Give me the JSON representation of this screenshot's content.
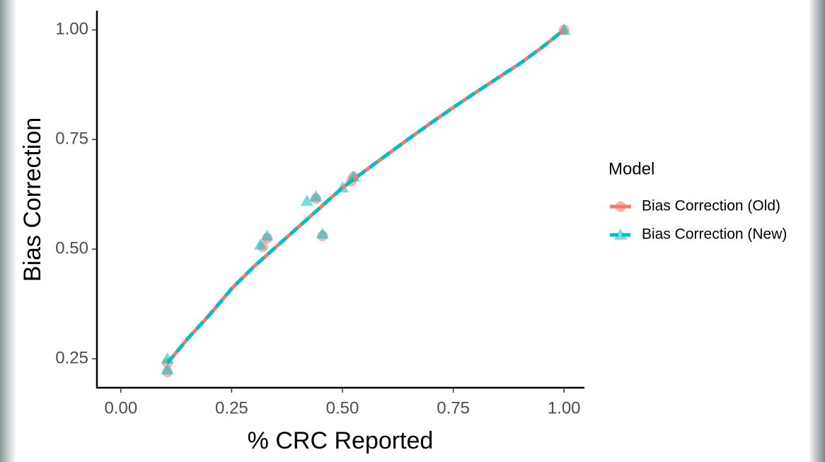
{
  "chart_data": {
    "type": "line-scatter",
    "x_label": "% CRC Reported",
    "y_label": "Bias Correction",
    "legend_title": "Model",
    "xlim": [
      -0.054,
      1.046
    ],
    "ylim": [
      0.184,
      1.044
    ],
    "xticks": [
      {
        "value": 0,
        "label": "0.00"
      },
      {
        "value": 0.25,
        "label": "0.25"
      },
      {
        "value": 0.5,
        "label": "0.50"
      },
      {
        "value": 0.75,
        "label": "0.75"
      },
      {
        "value": 1,
        "label": "1.00"
      }
    ],
    "yticks": [
      {
        "value": 0.25,
        "label": "0.25"
      },
      {
        "value": 0.5,
        "label": "0.50"
      },
      {
        "value": 0.75,
        "label": "0.75"
      },
      {
        "value": 1,
        "label": "1.00"
      }
    ],
    "grid": false,
    "series": [
      {
        "name": "Bias Correction (Old)",
        "color": "#F8766D",
        "marker": "circle",
        "dash": false,
        "points": {
          "x": [
            0.105,
            0.105,
            0.32,
            0.33,
            0.44,
            0.455,
            0.52,
            0.525,
            1.0
          ],
          "y": [
            0.22,
            0.24,
            0.505,
            0.525,
            0.615,
            0.53,
            0.655,
            0.665,
            1.0
          ]
        },
        "line": {
          "x": [
            0.105,
            0.15,
            0.2,
            0.25,
            0.3,
            0.35,
            0.4,
            0.45,
            0.5,
            0.55,
            0.6,
            0.65,
            0.7,
            0.75,
            0.8,
            0.85,
            0.9,
            0.95,
            1.0
          ],
          "y": [
            0.24,
            0.295,
            0.35,
            0.41,
            0.46,
            0.505,
            0.55,
            0.595,
            0.64,
            0.678,
            0.715,
            0.752,
            0.788,
            0.823,
            0.857,
            0.89,
            0.923,
            0.96,
            1.0
          ]
        }
      },
      {
        "name": "Bias Correction (New)",
        "color": "#00BFC4",
        "marker": "triangle",
        "dash": true,
        "points": {
          "x": [
            0.105,
            0.105,
            0.315,
            0.33,
            0.42,
            0.44,
            0.455,
            0.5,
            0.525,
            1.0
          ],
          "y": [
            0.25,
            0.225,
            0.51,
            0.53,
            0.61,
            0.62,
            0.535,
            0.64,
            0.665,
            1.0
          ]
        },
        "line": {
          "x": [
            0.105,
            0.15,
            0.2,
            0.25,
            0.3,
            0.35,
            0.4,
            0.45,
            0.5,
            0.55,
            0.6,
            0.65,
            0.7,
            0.75,
            0.8,
            0.85,
            0.9,
            0.95,
            1.0
          ],
          "y": [
            0.24,
            0.295,
            0.35,
            0.41,
            0.46,
            0.505,
            0.55,
            0.595,
            0.64,
            0.678,
            0.715,
            0.752,
            0.788,
            0.823,
            0.857,
            0.89,
            0.923,
            0.96,
            1.0
          ]
        }
      }
    ]
  }
}
